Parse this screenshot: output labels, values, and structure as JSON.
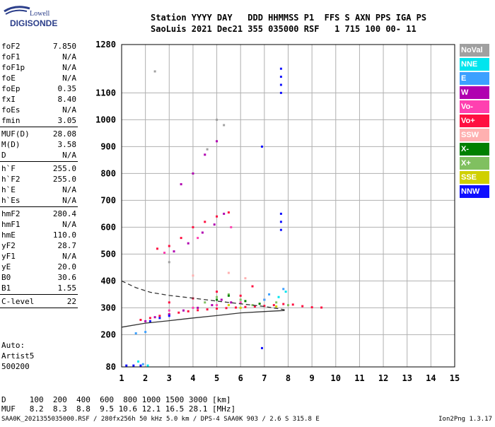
{
  "logo": {
    "line1": "Lowell",
    "line2": "DIGISONDE"
  },
  "header": {
    "labels": "Station YYYY DAY   DDD HHMMSS P1  FFS S AXN PPS IGA PS",
    "values": "SaoLuis 2021 Dec21 355 035000 RSF   1 715 100 00- 11"
  },
  "params": [
    [
      {
        "name": "foF2",
        "value": "7.850"
      },
      {
        "name": "foF1",
        "value": "N/A"
      },
      {
        "name": "foF1p",
        "value": "N/A"
      },
      {
        "name": "foE",
        "value": "N/A"
      },
      {
        "name": "foEp",
        "value": "0.35"
      },
      {
        "name": "fxI",
        "value": "8.40"
      },
      {
        "name": "foEs",
        "value": "N/A"
      },
      {
        "name": "fmin",
        "value": "3.05"
      }
    ],
    [
      {
        "name": "MUF(D)",
        "value": "28.08"
      },
      {
        "name": "M(D)",
        "value": "3.58"
      },
      {
        "name": "D",
        "value": "N/A"
      }
    ],
    [
      {
        "name": "h`F",
        "value": "255.0"
      },
      {
        "name": "h`F2",
        "value": "255.0"
      },
      {
        "name": "h`E",
        "value": "N/A"
      },
      {
        "name": "h`Es",
        "value": "N/A"
      }
    ],
    [
      {
        "name": "hmF2",
        "value": "280.4"
      },
      {
        "name": "hmF1",
        "value": "N/A"
      },
      {
        "name": "hmE",
        "value": "110.0"
      },
      {
        "name": "yF2",
        "value": "28.7"
      },
      {
        "name": "yF1",
        "value": "N/A"
      },
      {
        "name": "yE",
        "value": "20.0"
      },
      {
        "name": "B0",
        "value": "30.6"
      },
      {
        "name": "B1",
        "value": "1.55"
      }
    ],
    [
      {
        "name": "C-level",
        "value": "22"
      }
    ]
  ],
  "auto": {
    "line1": "Auto:",
    "line2": "Artist5",
    "line3": "500200"
  },
  "legend": [
    {
      "label": "NoVal",
      "color": "#a0a0a0"
    },
    {
      "label": "NNE",
      "color": "#00e5ee"
    },
    {
      "label": "E",
      "color": "#3ca0ff"
    },
    {
      "label": "W",
      "color": "#b000b0"
    },
    {
      "label": "Vo-",
      "color": "#ff40b0"
    },
    {
      "label": "Vo+",
      "color": "#ff1040"
    },
    {
      "label": "SSW",
      "color": "#ffb0b0"
    },
    {
      "label": "X-",
      "color": "#008000"
    },
    {
      "label": "X+",
      "color": "#80c060"
    },
    {
      "label": "SSE",
      "color": "#d0d000"
    },
    {
      "label": "NNW",
      "color": "#1010ff"
    }
  ],
  "dmuf": {
    "d_row": "D     100  200  400  600  800 1000 1500 3000 [km]",
    "muf_row": "MUF   8.2  8.3  8.8  9.5 10.6 12.1 16.5 28.1 [MHz]"
  },
  "footer": "SAA0K_2021355035000.RSF / 280fx256h 50 kHz 5.0 km / DPS-4 SAA0K 903 / 2.6 S 315.8 E",
  "version": "Ion2Png 1.3.17",
  "chart_data": {
    "type": "scatter",
    "x_ticks": [
      1,
      2,
      3,
      4,
      5,
      6,
      7,
      8,
      9,
      10,
      11,
      12,
      13,
      14,
      15
    ],
    "y_ticks": [
      80,
      200,
      300,
      400,
      500,
      600,
      700,
      800,
      900,
      1000,
      1100,
      1280
    ],
    "xlim": [
      1,
      15
    ],
    "ylim": [
      80,
      1280
    ],
    "grid": true,
    "legend_placement": "right",
    "series": [
      {
        "name": "Vo+",
        "color": "#ff1040",
        "points": [
          [
            1.8,
            255
          ],
          [
            2.2,
            262
          ],
          [
            2.6,
            270
          ],
          [
            3.0,
            276
          ],
          [
            3.4,
            282
          ],
          [
            3.8,
            287
          ],
          [
            4.2,
            291
          ],
          [
            4.6,
            294
          ],
          [
            5.0,
            297
          ],
          [
            5.4,
            299
          ],
          [
            5.8,
            301
          ],
          [
            6.2,
            303
          ],
          [
            6.6,
            305
          ],
          [
            7.0,
            307
          ],
          [
            7.4,
            310
          ],
          [
            7.8,
            314
          ],
          [
            8.2,
            312
          ],
          [
            8.6,
            306
          ],
          [
            9.0,
            302
          ],
          [
            9.4,
            301
          ],
          [
            3.0,
            320
          ],
          [
            4.0,
            335
          ],
          [
            5.0,
            360
          ],
          [
            6.0,
            345
          ],
          [
            6.5,
            380
          ],
          [
            7.0,
            330
          ],
          [
            2.5,
            520
          ],
          [
            3.0,
            530
          ],
          [
            3.5,
            560
          ],
          [
            4.0,
            600
          ],
          [
            4.5,
            620
          ],
          [
            5.0,
            640
          ],
          [
            5.5,
            655
          ]
        ]
      },
      {
        "name": "W",
        "color": "#b000b0",
        "points": [
          [
            2.0,
            250
          ],
          [
            2.4,
            265
          ],
          [
            3.0,
            275
          ],
          [
            3.6,
            290
          ],
          [
            4.2,
            300
          ],
          [
            4.8,
            310
          ],
          [
            5.2,
            330
          ],
          [
            5.6,
            320
          ],
          [
            3.2,
            510
          ],
          [
            3.8,
            540
          ],
          [
            4.4,
            580
          ],
          [
            4.9,
            610
          ],
          [
            5.3,
            650
          ],
          [
            3.5,
            760
          ],
          [
            4.0,
            800
          ],
          [
            4.5,
            870
          ],
          [
            5.0,
            920
          ]
        ]
      },
      {
        "name": "NNW",
        "color": "#1010ff",
        "points": [
          [
            1.2,
            85
          ],
          [
            1.5,
            85
          ],
          [
            1.8,
            85
          ],
          [
            2.2,
            250
          ],
          [
            2.6,
            262
          ],
          [
            3.0,
            270
          ],
          [
            7.7,
            1100
          ],
          [
            7.7,
            1130
          ],
          [
            7.7,
            1160
          ],
          [
            7.7,
            1190
          ],
          [
            6.9,
            900
          ],
          [
            7.7,
            590
          ],
          [
            7.7,
            620
          ],
          [
            7.7,
            650
          ],
          [
            6.9,
            150
          ]
        ]
      },
      {
        "name": "E",
        "color": "#3ca0ff",
        "points": [
          [
            1.6,
            205
          ],
          [
            2.0,
            210
          ],
          [
            1.9,
            90
          ],
          [
            7.0,
            330
          ],
          [
            7.2,
            350
          ],
          [
            7.8,
            370
          ]
        ]
      },
      {
        "name": "NNE",
        "color": "#00e5ee",
        "points": [
          [
            2.1,
            85
          ],
          [
            1.7,
            100
          ],
          [
            7.6,
            340
          ],
          [
            7.9,
            360
          ]
        ]
      },
      {
        "name": "X+",
        "color": "#80c060",
        "points": [
          [
            4.5,
            320
          ],
          [
            5.0,
            340
          ],
          [
            5.5,
            350
          ],
          [
            6.0,
            330
          ],
          [
            6.5,
            310
          ],
          [
            7.5,
            320
          ],
          [
            8.0,
            310
          ]
        ]
      },
      {
        "name": "X-",
        "color": "#008000",
        "points": [
          [
            5.0,
            330
          ],
          [
            5.5,
            345
          ],
          [
            6.2,
            325
          ],
          [
            6.8,
            315
          ]
        ]
      },
      {
        "name": "Vo-",
        "color": "#ff40b0",
        "points": [
          [
            3.0,
            290
          ],
          [
            4.0,
            300
          ],
          [
            5.0,
            310
          ],
          [
            6.0,
            320
          ],
          [
            2.8,
            505
          ],
          [
            4.2,
            560
          ],
          [
            5.6,
            600
          ]
        ]
      },
      {
        "name": "SSE",
        "color": "#d0d000",
        "points": [
          [
            5.5,
            310
          ],
          [
            6.0,
            300
          ],
          [
            7.5,
            305
          ]
        ]
      },
      {
        "name": "SSW",
        "color": "#ffb0b0",
        "points": [
          [
            4.0,
            420
          ],
          [
            5.5,
            430
          ],
          [
            6.2,
            410
          ]
        ]
      },
      {
        "name": "NoVal",
        "color": "#a0a0a0",
        "points": [
          [
            3.0,
            470
          ],
          [
            4.6,
            890
          ],
          [
            5.3,
            980
          ],
          [
            5.0,
            1000
          ],
          [
            2.4,
            1180
          ]
        ]
      }
    ],
    "traces": [
      {
        "style": "dashed",
        "points": [
          [
            1.0,
            400
          ],
          [
            1.6,
            375
          ],
          [
            2.2,
            358
          ],
          [
            3.0,
            346
          ],
          [
            4.0,
            336
          ],
          [
            5.0,
            325
          ],
          [
            6.0,
            315
          ],
          [
            7.0,
            305
          ],
          [
            7.85,
            293
          ]
        ]
      },
      {
        "style": "solid",
        "points": [
          [
            1.0,
            228
          ],
          [
            2.0,
            243
          ],
          [
            3.0,
            252
          ],
          [
            4.0,
            262
          ],
          [
            5.0,
            271
          ],
          [
            6.0,
            281
          ],
          [
            7.0,
            286
          ],
          [
            7.85,
            290
          ]
        ]
      }
    ]
  }
}
